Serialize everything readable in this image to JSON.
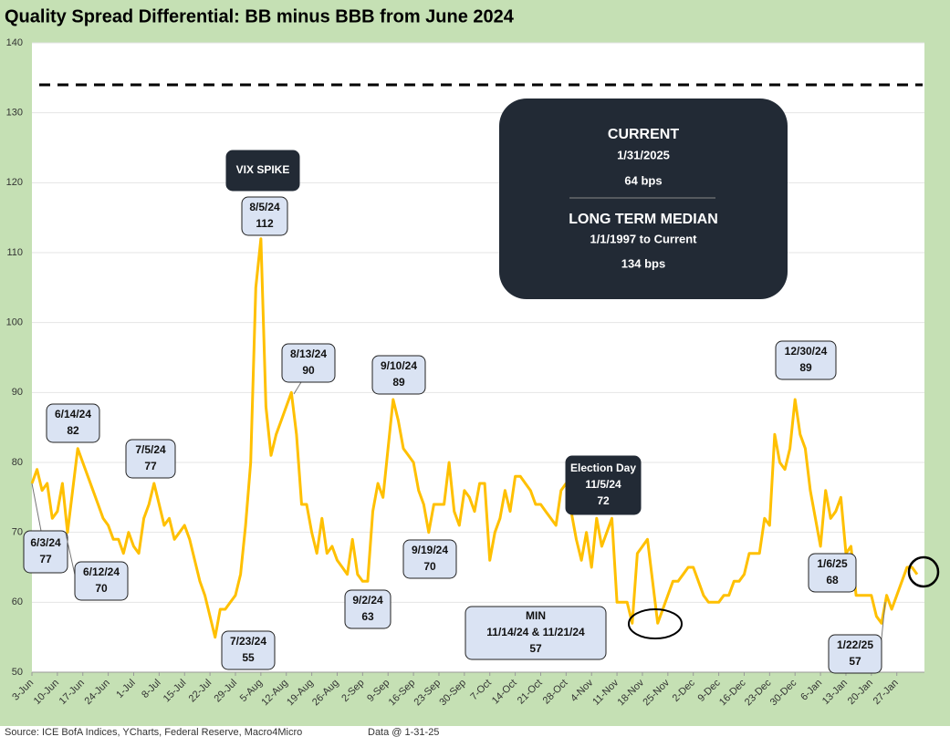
{
  "chart_data": {
    "type": "line",
    "title": "Quality Spread Differential: BB minus BBB from June 2024",
    "source": "Source: ICE BofA Indices, YCharts, Federal Reserve, Macro4Micro",
    "data_note": "Data @ 1-31-25",
    "color": "#ffc000",
    "categories": [
      "3-Jun",
      null,
      null,
      null,
      null,
      "10-Jun",
      null,
      null,
      null,
      null,
      "17-Jun",
      null,
      null,
      null,
      null,
      "24-Jun",
      null,
      null,
      null,
      null,
      "1-Jul",
      null,
      null,
      null,
      null,
      "8-Jul",
      null,
      null,
      null,
      null,
      "15-Jul",
      null,
      null,
      null,
      null,
      "22-Jul",
      null,
      null,
      null,
      null,
      "29-Jul",
      null,
      null,
      null,
      null,
      "5-Aug",
      null,
      null,
      null,
      null,
      "12-Aug",
      null,
      null,
      null,
      null,
      "19-Aug",
      null,
      null,
      null,
      null,
      "26-Aug",
      null,
      null,
      null,
      null,
      "2-Sep",
      null,
      null,
      null,
      null,
      "9-Sep",
      null,
      null,
      null,
      null,
      "16-Sep",
      null,
      null,
      null,
      null,
      "23-Sep",
      null,
      null,
      null,
      null,
      "30-Sep",
      null,
      null,
      null,
      null,
      "7-Oct",
      null,
      null,
      null,
      null,
      "14-Oct",
      null,
      null,
      null,
      null,
      "21-Oct",
      null,
      null,
      null,
      null,
      "28-Oct",
      null,
      null,
      null,
      null,
      "4-Nov",
      null,
      null,
      null,
      null,
      "11-Nov",
      null,
      null,
      null,
      null,
      "18-Nov",
      null,
      null,
      null,
      null,
      "25-Nov",
      null,
      null,
      null,
      null,
      "2-Dec",
      null,
      null,
      null,
      null,
      "9-Dec",
      null,
      null,
      null,
      null,
      "16-Dec",
      null,
      null,
      null,
      null,
      "23-Dec",
      null,
      null,
      null,
      null,
      "30-Dec",
      null,
      null,
      null,
      null,
      "6-Jan",
      null,
      null,
      null,
      null,
      "13-Jan",
      null,
      null,
      null,
      null,
      "20-Jan",
      null,
      null,
      null,
      null,
      "27-Jan",
      null,
      null,
      null,
      null
    ],
    "values": [
      77,
      79,
      76,
      77,
      72,
      73,
      77,
      70,
      76,
      82,
      80,
      78,
      76,
      74,
      72,
      71,
      69,
      69,
      67,
      70,
      68,
      67,
      72,
      74,
      77,
      74,
      71,
      72,
      69,
      70,
      71,
      69,
      66,
      63,
      61,
      58,
      55,
      59,
      59,
      60,
      61,
      64,
      71,
      80,
      105,
      112,
      88,
      81,
      84,
      86,
      88,
      90,
      84,
      74,
      74,
      70,
      67,
      72,
      67,
      68,
      66,
      65,
      64,
      69,
      64,
      63,
      63,
      73,
      77,
      75,
      82,
      89,
      86,
      82,
      81,
      80,
      76,
      74,
      70,
      74,
      74,
      74,
      80,
      73,
      71,
      76,
      75,
      73,
      77,
      77,
      66,
      70,
      72,
      76,
      73,
      78,
      78,
      77,
      76,
      74,
      74,
      73,
      72,
      71,
      76,
      77,
      73,
      69,
      66,
      70,
      65,
      72,
      68,
      70,
      72,
      60,
      60,
      60,
      57,
      67,
      68,
      69,
      63,
      57,
      59,
      61,
      63,
      63,
      64,
      65,
      65,
      63,
      61,
      60,
      60,
      60,
      61,
      61,
      63,
      63,
      64,
      67,
      67,
      67,
      72,
      71,
      84,
      80,
      79,
      82,
      89,
      84,
      82,
      76,
      72,
      68,
      76,
      72,
      73,
      75,
      67,
      68,
      61,
      61,
      61,
      61,
      58,
      57,
      61,
      59,
      61,
      63,
      65,
      65,
      64
    ],
    "ylim": [
      50,
      140
    ],
    "yticks": [
      50,
      60,
      70,
      80,
      90,
      100,
      110,
      120,
      130,
      140
    ],
    "reference_line": 134,
    "info_box": [
      "CURRENT",
      "1/31/2025",
      "64 bps",
      "LONG TERM MEDIAN",
      "1/1/1997 to Current",
      "134 bps"
    ],
    "annotations": [
      {
        "text": [
          "6/3/24",
          "77"
        ]
      },
      {
        "text": [
          "6/12/24",
          "70"
        ]
      },
      {
        "text": [
          "6/14/24",
          "82"
        ]
      },
      {
        "text": [
          "7/5/24",
          "77"
        ]
      },
      {
        "text": [
          "7/23/24",
          "55"
        ]
      },
      {
        "text": [
          "VIX SPIKE"
        ],
        "style": "dark"
      },
      {
        "text": [
          "8/5/24",
          "112"
        ]
      },
      {
        "text": [
          "8/13/24",
          "90"
        ]
      },
      {
        "text": [
          "9/2/24",
          "63"
        ]
      },
      {
        "text": [
          "9/10/24",
          "89"
        ]
      },
      {
        "text": [
          "9/19/24",
          "70"
        ]
      },
      {
        "text": [
          "Election Day",
          "11/5/24",
          "72"
        ],
        "style": "dark"
      },
      {
        "text": [
          "MIN",
          "11/14/24 & 11/21/24",
          "57"
        ]
      },
      {
        "text": [
          "12/30/24",
          "89"
        ]
      },
      {
        "text": [
          "1/6/25",
          "68"
        ]
      },
      {
        "text": [
          "1/22/25",
          "57"
        ]
      }
    ]
  }
}
